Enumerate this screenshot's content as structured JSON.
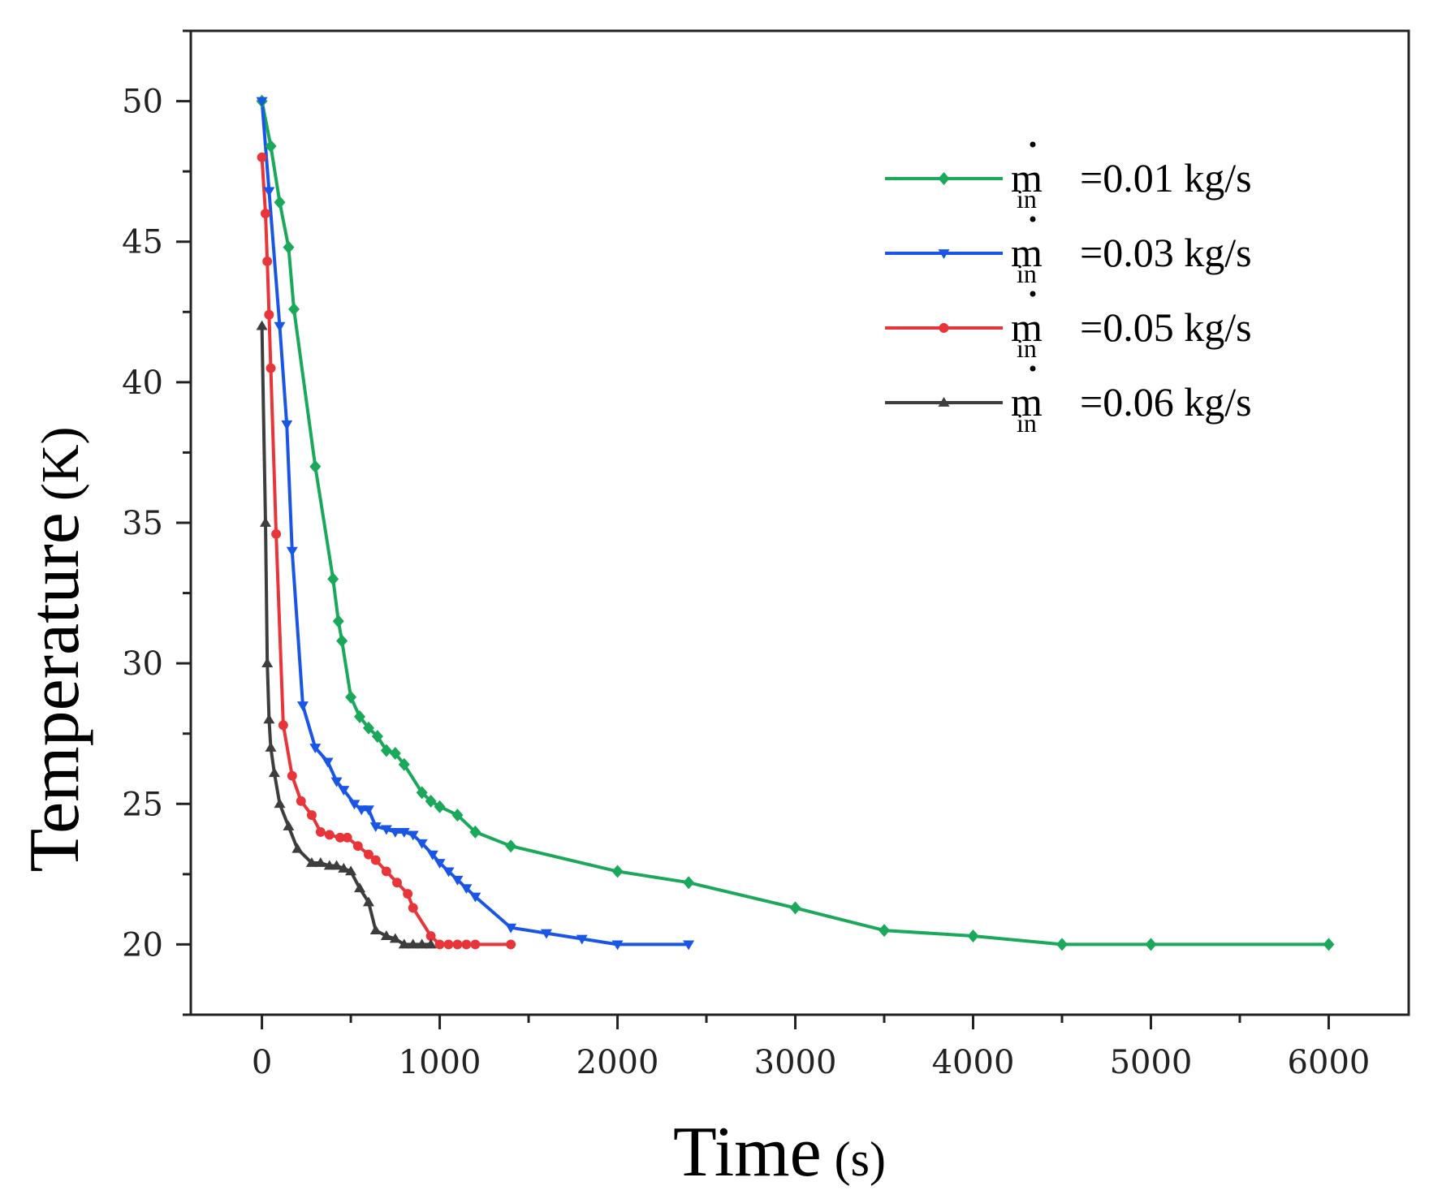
{
  "chart_data": {
    "type": "line",
    "title": "",
    "xlabel_main": "Time",
    "xlabel_unit": "(s)",
    "ylabel_main": "Temperature",
    "ylabel_unit": "(K)",
    "xlim": [
      -400,
      6450
    ],
    "ylim": [
      17.5,
      52.5
    ],
    "xticks": [
      0,
      1000,
      2000,
      3000,
      4000,
      5000,
      6000
    ],
    "xtick_labels": [
      "0",
      "1000",
      "2000",
      "3000",
      "4000",
      "5000",
      "6000"
    ],
    "yticks": [
      20,
      25,
      30,
      35,
      40,
      45,
      50
    ],
    "ytick_labels": [
      "20",
      "25",
      "30",
      "35",
      "40",
      "45",
      "50"
    ],
    "legend_position": "top-right",
    "legend_symbol": "m",
    "legend_subscript": "in",
    "series": [
      {
        "name": "=0.01 kg/s",
        "color": "#1aa85a",
        "marker": "diamond",
        "x": [
          0,
          50,
          100,
          150,
          180,
          300,
          400,
          430,
          450,
          500,
          550,
          600,
          650,
          700,
          750,
          800,
          900,
          950,
          1000,
          1100,
          1200,
          1400,
          2000,
          2400,
          3000,
          3500,
          4000,
          4500,
          5000,
          6000
        ],
        "y": [
          50,
          48.4,
          46.4,
          44.8,
          42.6,
          37,
          33,
          31.5,
          30.8,
          28.8,
          28.1,
          27.7,
          27.4,
          26.9,
          26.8,
          26.4,
          25.4,
          25.1,
          24.9,
          24.6,
          24.0,
          23.5,
          22.6,
          22.2,
          21.3,
          20.5,
          20.3,
          20.0,
          20.0,
          20.0
        ]
      },
      {
        "name": "=0.03 kg/s",
        "color": "#1a56e6",
        "marker": "triangle-down",
        "x": [
          0,
          40,
          100,
          140,
          170,
          230,
          300,
          370,
          420,
          460,
          520,
          560,
          600,
          640,
          700,
          750,
          800,
          850,
          900,
          960,
          1000,
          1050,
          1100,
          1150,
          1200,
          1400,
          1600,
          1800,
          2000,
          2400
        ],
        "y": [
          50,
          46.8,
          42,
          38.5,
          34,
          28.5,
          27,
          26.5,
          25.8,
          25.5,
          25,
          24.8,
          24.8,
          24.2,
          24.1,
          24.0,
          24.0,
          23.9,
          23.6,
          23.2,
          22.9,
          22.6,
          22.3,
          22.0,
          21.7,
          20.6,
          20.4,
          20.2,
          20.0,
          20.0
        ]
      },
      {
        "name": "=0.05 kg/s",
        "color": "#e8353a",
        "marker": "circle",
        "x": [
          0,
          20,
          30,
          40,
          50,
          80,
          120,
          170,
          220,
          280,
          330,
          380,
          440,
          480,
          540,
          600,
          640,
          700,
          760,
          820,
          850,
          950,
          1000,
          1050,
          1100,
          1150,
          1200,
          1400
        ],
        "y": [
          48,
          46,
          44.3,
          42.4,
          40.5,
          34.6,
          27.8,
          26,
          25.1,
          24.6,
          24.0,
          23.9,
          23.8,
          23.8,
          23.5,
          23.2,
          23.0,
          22.6,
          22.2,
          21.8,
          21.3,
          20.3,
          20.0,
          20.0,
          20.0,
          20.0,
          20.0,
          20.0
        ]
      },
      {
        "name": "=0.06 kg/s",
        "color": "#3d3d3d",
        "marker": "triangle-up",
        "x": [
          0,
          20,
          30,
          40,
          50,
          70,
          100,
          150,
          200,
          280,
          330,
          380,
          420,
          460,
          500,
          550,
          600,
          640,
          700,
          750,
          800,
          850,
          900,
          950
        ],
        "y": [
          42,
          35,
          30,
          28,
          27,
          26.1,
          25,
          24.2,
          23.4,
          22.9,
          22.9,
          22.8,
          22.8,
          22.7,
          22.6,
          22.0,
          21.5,
          20.5,
          20.3,
          20.2,
          20.0,
          20.0,
          20.0,
          20.0
        ]
      }
    ]
  }
}
